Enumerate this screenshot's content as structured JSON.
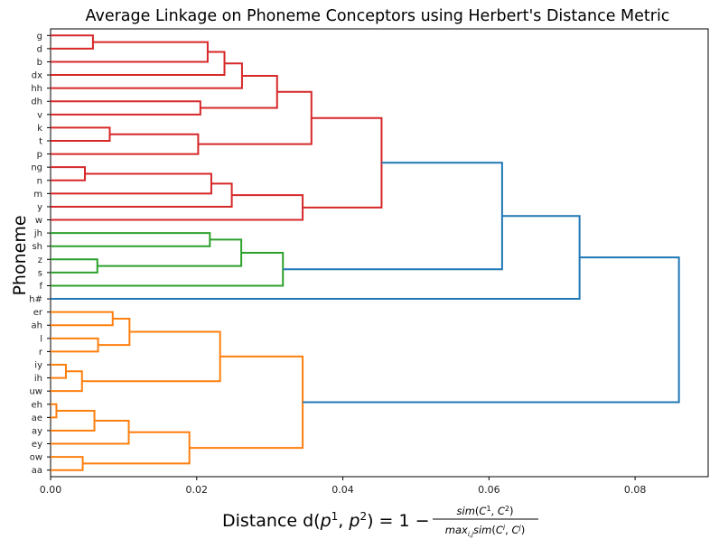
{
  "chart_data": {
    "type": "dendrogram",
    "title": "Average Linkage on Phoneme Conceptors using Herbert's Distance Metric",
    "xlabel": "Distance d(p¹, p²) = 1 − sim(C¹, C²) / max_{i,j} sim(Cⁱ, Cʲ)",
    "ylabel": "Phoneme",
    "xlim": [
      0,
      0.09
    ],
    "xticks": [
      "0.00",
      "0.02",
      "0.04",
      "0.06",
      "0.08"
    ],
    "xtick_values": [
      0,
      0.02,
      0.04,
      0.06,
      0.08
    ],
    "leaves": [
      "g",
      "d",
      "b",
      "dx",
      "hh",
      "dh",
      "v",
      "k",
      "t",
      "p",
      "ng",
      "n",
      "m",
      "y",
      "w",
      "jh",
      "sh",
      "z",
      "s",
      "f",
      "h#",
      "er",
      "ah",
      "l",
      "r",
      "iy",
      "ih",
      "uw",
      "eh",
      "ae",
      "ay",
      "ey",
      "ow",
      "aa"
    ],
    "cluster_colors": {
      "red": "#d62728",
      "green": "#2ca02c",
      "orange": "#ff7f0e",
      "blue": "#1f77b4"
    },
    "merges": [
      {
        "id": "c1",
        "children": [
          "g",
          "d"
        ],
        "distance": 0.0058,
        "color": "red"
      },
      {
        "id": "c2",
        "children": [
          "c1",
          "b"
        ],
        "distance": 0.0215,
        "color": "red"
      },
      {
        "id": "c3",
        "children": [
          "c2",
          "dx"
        ],
        "distance": 0.0238,
        "color": "red"
      },
      {
        "id": "c4",
        "children": [
          "c3",
          "hh"
        ],
        "distance": 0.0262,
        "color": "red"
      },
      {
        "id": "c5",
        "children": [
          "dh",
          "v"
        ],
        "distance": 0.0205,
        "color": "red"
      },
      {
        "id": "c6",
        "children": [
          "c4",
          "c5"
        ],
        "distance": 0.031,
        "color": "red"
      },
      {
        "id": "c7",
        "children": [
          "k",
          "t"
        ],
        "distance": 0.0081,
        "color": "red"
      },
      {
        "id": "c8",
        "children": [
          "c7",
          "p"
        ],
        "distance": 0.0202,
        "color": "red"
      },
      {
        "id": "c9",
        "children": [
          "c6",
          "c8"
        ],
        "distance": 0.0357,
        "color": "red"
      },
      {
        "id": "c10",
        "children": [
          "ng",
          "n"
        ],
        "distance": 0.0047,
        "color": "red"
      },
      {
        "id": "c11",
        "children": [
          "c10",
          "m"
        ],
        "distance": 0.022,
        "color": "red"
      },
      {
        "id": "c12",
        "children": [
          "c11",
          "y"
        ],
        "distance": 0.0248,
        "color": "red"
      },
      {
        "id": "c13",
        "children": [
          "c12",
          "w"
        ],
        "distance": 0.0345,
        "color": "red"
      },
      {
        "id": "c14",
        "children": [
          "c9",
          "c13"
        ],
        "distance": 0.0453,
        "color": "red"
      },
      {
        "id": "c15",
        "children": [
          "jh",
          "sh"
        ],
        "distance": 0.0218,
        "color": "green"
      },
      {
        "id": "c16",
        "children": [
          "z",
          "s"
        ],
        "distance": 0.0064,
        "color": "green"
      },
      {
        "id": "c17",
        "children": [
          "c15",
          "c16"
        ],
        "distance": 0.0261,
        "color": "green"
      },
      {
        "id": "c18",
        "children": [
          "c17",
          "f"
        ],
        "distance": 0.0318,
        "color": "green"
      },
      {
        "id": "c19",
        "children": [
          "c14",
          "c18"
        ],
        "distance": 0.0618,
        "color": "blue"
      },
      {
        "id": "c20",
        "children": [
          "c19",
          "h#"
        ],
        "distance": 0.0724,
        "color": "blue"
      },
      {
        "id": "c21",
        "children": [
          "er",
          "ah"
        ],
        "distance": 0.0085,
        "color": "orange"
      },
      {
        "id": "c22",
        "children": [
          "l",
          "r"
        ],
        "distance": 0.0065,
        "color": "orange"
      },
      {
        "id": "c23",
        "children": [
          "c21",
          "c22"
        ],
        "distance": 0.0108,
        "color": "orange"
      },
      {
        "id": "c24",
        "children": [
          "iy",
          "ih"
        ],
        "distance": 0.0021,
        "color": "orange"
      },
      {
        "id": "c25",
        "children": [
          "c24",
          "uw"
        ],
        "distance": 0.0043,
        "color": "orange"
      },
      {
        "id": "c26",
        "children": [
          "c23",
          "c25"
        ],
        "distance": 0.0232,
        "color": "orange"
      },
      {
        "id": "c27",
        "children": [
          "eh",
          "ae"
        ],
        "distance": 0.0008,
        "color": "orange"
      },
      {
        "id": "c28",
        "children": [
          "c27",
          "ay"
        ],
        "distance": 0.006,
        "color": "orange"
      },
      {
        "id": "c29",
        "children": [
          "c28",
          "ey"
        ],
        "distance": 0.0107,
        "color": "orange"
      },
      {
        "id": "c30",
        "children": [
          "ow",
          "aa"
        ],
        "distance": 0.0044,
        "color": "orange"
      },
      {
        "id": "c31",
        "children": [
          "c29",
          "c30"
        ],
        "distance": 0.019,
        "color": "orange"
      },
      {
        "id": "c32",
        "children": [
          "c26",
          "c31"
        ],
        "distance": 0.0345,
        "color": "orange"
      },
      {
        "id": "c33",
        "children": [
          "c20",
          "c32"
        ],
        "distance": 0.086,
        "color": "blue"
      }
    ]
  }
}
